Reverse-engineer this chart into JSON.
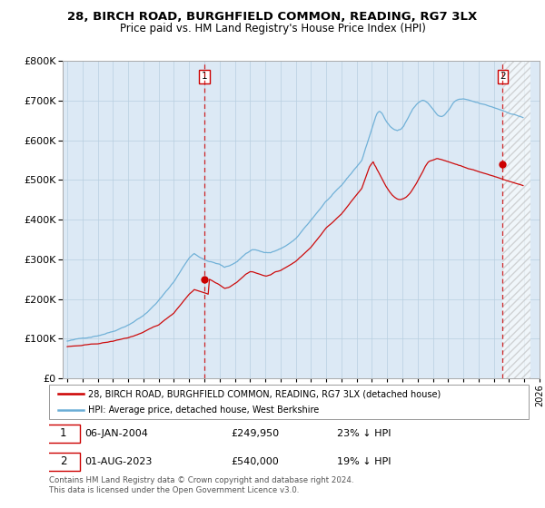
{
  "title": "28, BIRCH ROAD, BURGHFIELD COMMON, READING, RG7 3LX",
  "subtitle": "Price paid vs. HM Land Registry's House Price Index (HPI)",
  "legend_line1": "28, BIRCH ROAD, BURGHFIELD COMMON, READING, RG7 3LX (detached house)",
  "legend_line2": "HPI: Average price, detached house, West Berkshire",
  "annotation1_date": "06-JAN-2004",
  "annotation1_price": "£249,950",
  "annotation1_hpi": "23% ↓ HPI",
  "annotation2_date": "01-AUG-2023",
  "annotation2_price": "£540,000",
  "annotation2_hpi": "19% ↓ HPI",
  "footnote": "Contains HM Land Registry data © Crown copyright and database right 2024.\nThis data is licensed under the Open Government Licence v3.0.",
  "hpi_color": "#6baed6",
  "price_color": "#cc0000",
  "dashed_vline_color": "#cc0000",
  "chart_bg_color": "#dce9f5",
  "plot_bg_color": "#ffffff",
  "grid_color": "#b8cfe0",
  "hatch_color": "#c0c0c0",
  "ylim": [
    0,
    800000
  ],
  "yticks": [
    0,
    100000,
    200000,
    300000,
    400000,
    500000,
    600000,
    700000,
    800000
  ],
  "sale1_year_idx": 109,
  "sale2_year_idx": 343,
  "sale1_price": 249950,
  "sale2_price": 540000,
  "hpi_monthly": [
    94000,
    94500,
    95000,
    95500,
    96000,
    96500,
    97000,
    97500,
    98000,
    98500,
    99000,
    99500,
    100000,
    100800,
    101500,
    102200,
    103000,
    103800,
    104500,
    105200,
    106000,
    106800,
    107500,
    108200,
    109000,
    110000,
    111000,
    112000,
    113000,
    114000,
    115000,
    116000,
    117000,
    118000,
    119000,
    120000,
    121000,
    122500,
    124000,
    125500,
    127000,
    128500,
    130000,
    131500,
    133000,
    134500,
    136000,
    137500,
    139000,
    141000,
    143000,
    145000,
    147000,
    149000,
    151000,
    153000,
    155000,
    157000,
    159000,
    161000,
    163000,
    166000,
    169000,
    172000,
    175000,
    178000,
    181000,
    184000,
    187000,
    190000,
    193000,
    196000,
    200000,
    204000,
    208000,
    212000,
    216000,
    220000,
    224000,
    228000,
    232000,
    236000,
    240000,
    244000,
    248000,
    253000,
    258000,
    263000,
    268000,
    273000,
    278000,
    283000,
    288000,
    293000,
    298000,
    303000,
    308000,
    311000,
    314000,
    317000,
    320000,
    318000,
    316000,
    314000,
    312000,
    310000,
    308000,
    306000,
    304000,
    303000,
    302000,
    301000,
    300000,
    299000,
    298000,
    297000,
    296000,
    295000,
    294000,
    293000,
    292000,
    290000,
    288000,
    286000,
    284000,
    285000,
    286000,
    287000,
    288000,
    290000,
    292000,
    294000,
    296000,
    298000,
    300000,
    303000,
    306000,
    309000,
    312000,
    315000,
    318000,
    320000,
    322000,
    324000,
    326000,
    328000,
    330000,
    330000,
    330000,
    329000,
    328000,
    327000,
    326000,
    325000,
    324000,
    323000,
    322000,
    322000,
    322000,
    322000,
    322000,
    323000,
    324000,
    325000,
    326000,
    327000,
    328000,
    329000,
    330000,
    332000,
    334000,
    336000,
    338000,
    340000,
    342000,
    344000,
    346000,
    348000,
    350000,
    352000,
    354000,
    358000,
    362000,
    366000,
    370000,
    374000,
    378000,
    382000,
    386000,
    390000,
    394000,
    398000,
    402000,
    406000,
    410000,
    414000,
    418000,
    422000,
    426000,
    430000,
    434000,
    438000,
    442000,
    446000,
    450000,
    453000,
    456000,
    459000,
    462000,
    465000,
    468000,
    471000,
    474000,
    477000,
    480000,
    483000,
    486000,
    490000,
    494000,
    498000,
    502000,
    506000,
    510000,
    514000,
    518000,
    522000,
    526000,
    530000,
    534000,
    538000,
    542000,
    546000,
    550000,
    560000,
    570000,
    580000,
    590000,
    600000,
    610000,
    620000,
    630000,
    640000,
    650000,
    660000,
    668000,
    672000,
    674000,
    672000,
    668000,
    662000,
    656000,
    650000,
    644000,
    640000,
    636000,
    633000,
    630000,
    628000,
    626000,
    625000,
    624000,
    626000,
    628000,
    630000,
    634000,
    638000,
    644000,
    650000,
    656000,
    662000,
    668000,
    674000,
    680000,
    684000,
    688000,
    692000,
    695000,
    698000,
    700000,
    702000,
    703000,
    702000,
    700000,
    698000,
    695000,
    692000,
    688000,
    684000,
    680000,
    676000,
    672000,
    668000,
    665000,
    663000,
    662000,
    662000,
    663000,
    665000,
    668000,
    672000,
    676000,
    680000,
    685000,
    690000,
    695000,
    698000,
    700000,
    702000,
    703000,
    704000,
    704000,
    704000,
    704000,
    703000,
    702000,
    701000,
    700000,
    699000,
    698000,
    697000,
    696000,
    695000,
    694000,
    693000,
    692000,
    691000,
    690000,
    689000,
    688000,
    687000,
    686000,
    685000,
    684000,
    683000,
    682000,
    681000,
    680000,
    679000,
    678000,
    677000,
    676000,
    675000,
    674000,
    673000,
    672000,
    671000,
    670000,
    669000,
    668000,
    667000,
    666000,
    665000,
    664000,
    663000,
    662000,
    661000,
    660000,
    659000,
    658000,
    657000
  ],
  "price_monthly": [
    80000,
    80200,
    80400,
    80600,
    80800,
    81000,
    81200,
    81400,
    81600,
    81800,
    82000,
    82200,
    82500,
    82800,
    83100,
    83400,
    83700,
    84000,
    84300,
    84600,
    84900,
    85200,
    85500,
    85800,
    86200,
    86700,
    87200,
    87700,
    88200,
    88700,
    89200,
    89700,
    90200,
    90700,
    91200,
    91700,
    92200,
    93000,
    93800,
    94600,
    95400,
    96200,
    97000,
    97800,
    98600,
    99400,
    100000,
    100600,
    101200,
    102300,
    103400,
    104500,
    105600,
    106700,
    107800,
    108900,
    110000,
    111100,
    112200,
    113300,
    114500,
    116000,
    117500,
    119000,
    120500,
    122000,
    123500,
    125000,
    126500,
    128000,
    129500,
    131000,
    132500,
    135000,
    137500,
    140000,
    142500,
    145000,
    147500,
    150000,
    152500,
    155000,
    157500,
    160000,
    163000,
    167000,
    171000,
    175000,
    179000,
    183000,
    187000,
    191000,
    195000,
    199000,
    203000,
    207000,
    211000,
    214000,
    217000,
    220000,
    223000,
    222000,
    221000,
    220000,
    219000,
    218000,
    217000,
    216000,
    215000,
    214000,
    213000,
    212000,
    249950,
    248000,
    246000,
    244000,
    242000,
    240000,
    238000,
    236000,
    234000,
    232000,
    230000,
    228000,
    226000,
    227000,
    228000,
    229000,
    230000,
    232000,
    234000,
    236000,
    238000,
    240000,
    242000,
    245000,
    248000,
    251000,
    254000,
    257000,
    260000,
    262000,
    264000,
    266000,
    268000,
    268000,
    268000,
    267000,
    266000,
    265000,
    264000,
    263000,
    262000,
    261000,
    260000,
    259000,
    258000,
    258000,
    259000,
    260000,
    261000,
    263000,
    265000,
    267000,
    269000,
    270000,
    271000,
    272000,
    273000,
    275000,
    277000,
    279000,
    281000,
    283000,
    285000,
    287000,
    289000,
    291000,
    293000,
    295000,
    297000,
    300000,
    303000,
    306000,
    309000,
    312000,
    315000,
    318000,
    321000,
    324000,
    327000,
    330000,
    333000,
    337000,
    341000,
    345000,
    349000,
    353000,
    357000,
    361000,
    365000,
    369000,
    373000,
    377000,
    381000,
    384000,
    387000,
    390000,
    393000,
    396000,
    399000,
    402000,
    405000,
    408000,
    411000,
    414000,
    417000,
    421000,
    425000,
    429000,
    433000,
    437000,
    441000,
    445000,
    449000,
    453000,
    457000,
    461000,
    465000,
    469000,
    473000,
    477000,
    481000,
    490000,
    499000,
    508000,
    517000,
    526000,
    535000,
    540000,
    544000,
    548000,
    540000,
    535000,
    528000,
    522000,
    516000,
    510000,
    504000,
    498000,
    492000,
    486000,
    481000,
    476000,
    471000,
    467000,
    463000,
    460000,
    457000,
    455000,
    453000,
    452000,
    451000,
    451000,
    452000,
    453000,
    455000,
    457000,
    460000,
    463000,
    467000,
    471000,
    476000,
    481000,
    486000,
    492000,
    498000,
    504000,
    510000,
    516000,
    522000,
    528000,
    535000,
    540000,
    545000,
    548000,
    550000,
    551000,
    552000,
    553000,
    554000,
    555000,
    555000,
    554000,
    553000,
    552000,
    551000,
    550000,
    549000,
    548000,
    547000,
    546000,
    545000,
    544000,
    543000,
    542000,
    541000,
    540000,
    539000,
    538000,
    537000,
    536000,
    535000,
    534000,
    533000,
    532000,
    531000,
    530000,
    529000,
    528000,
    527000,
    526000,
    525000,
    524000,
    523000,
    522000,
    521000,
    520000,
    519000,
    518000,
    517000,
    516000,
    515000,
    514000,
    513000,
    512000,
    511000,
    510000,
    509000,
    508000,
    507000,
    506000,
    505000,
    504000,
    503000,
    502000,
    501000,
    500000,
    499000,
    498000,
    497000,
    496000,
    495000,
    494000,
    493000,
    492000,
    491000,
    490000,
    489000,
    488000
  ]
}
